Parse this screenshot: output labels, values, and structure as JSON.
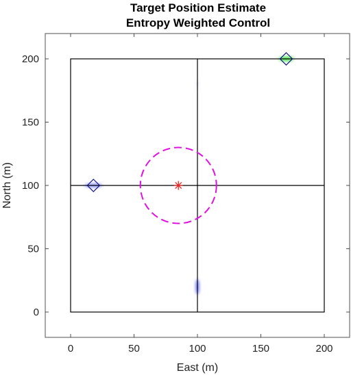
{
  "chart_data": {
    "type": "scatter",
    "title": [
      "Target Position Estimate",
      "Entropy Weighted Control"
    ],
    "xlabel": "East (m)",
    "ylabel": "North (m)",
    "xlim": [
      -20,
      220
    ],
    "ylim": [
      -20,
      220
    ],
    "xticks": [
      0,
      50,
      100,
      150,
      200
    ],
    "yticks": [
      0,
      50,
      100,
      150,
      200
    ],
    "grid": false,
    "boundary": {
      "x": [
        0,
        200
      ],
      "y": [
        0,
        200
      ]
    },
    "cross_lines": {
      "x": 100,
      "y": 100
    },
    "targets": [
      {
        "x": 18,
        "y": 100,
        "marker": "diamond",
        "estimate_color": "#2233ee"
      },
      {
        "x": 170,
        "y": 200,
        "marker": "diamond",
        "estimate_color": "#22dd22"
      }
    ],
    "estimate_clouds": [
      {
        "x": 18,
        "y": 100,
        "color": "#2233ee",
        "sx": 7,
        "sy": 1.5,
        "opacity": 0.55
      },
      {
        "x": 170,
        "y": 200,
        "color": "#22dd22",
        "sx": 6,
        "sy": 2,
        "opacity": 0.75
      },
      {
        "x": 100,
        "y": 20,
        "color": "#2233ee",
        "sx": 1.5,
        "sy": 6,
        "opacity": 0.65
      },
      {
        "x": 100,
        "y": 180,
        "color": "#8888cc",
        "sx": 1.2,
        "sy": 3,
        "opacity": 0.18
      }
    ],
    "sensor": {
      "x": 85,
      "y": 100,
      "marker": "asterisk",
      "color": "#ee2222"
    },
    "sensor_range": {
      "cx": 85,
      "cy": 100,
      "r": 30,
      "color": "#e010e0",
      "style": "dashed"
    }
  }
}
